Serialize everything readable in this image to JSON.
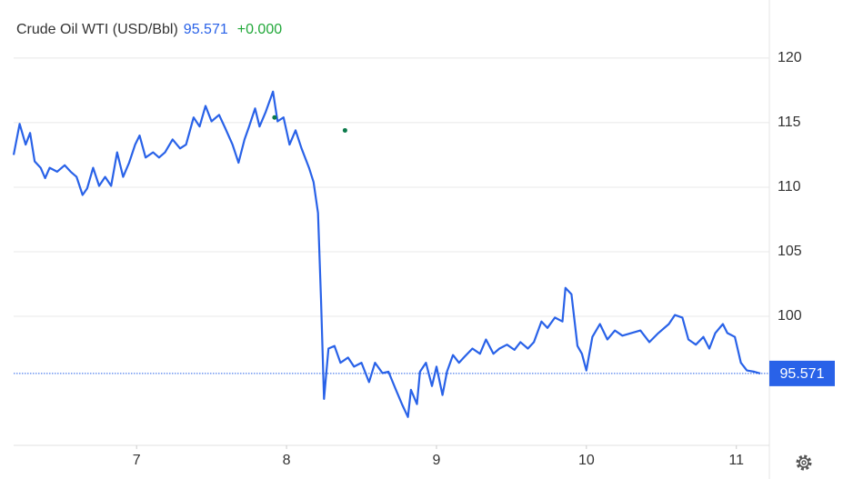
{
  "chart_data": {
    "type": "line",
    "title": "Crude Oil WTI (USD/Bbl)",
    "price": 95.571,
    "change": "+0.000",
    "x": [
      6.18,
      6.22,
      6.26,
      6.29,
      6.32,
      6.36,
      6.39,
      6.42,
      6.47,
      6.52,
      6.56,
      6.6,
      6.64,
      6.67,
      6.71,
      6.75,
      6.79,
      6.83,
      6.87,
      6.91,
      6.95,
      6.99,
      7.02,
      7.06,
      7.11,
      7.15,
      7.19,
      7.24,
      7.29,
      7.33,
      7.38,
      7.42,
      7.46,
      7.5,
      7.55,
      7.59,
      7.64,
      7.68,
      7.72,
      7.75,
      7.79,
      7.82,
      7.86,
      7.91,
      7.94,
      7.98,
      8.02,
      8.06,
      8.1,
      8.15,
      8.18,
      8.21,
      8.23,
      8.25,
      8.28,
      8.32,
      8.36,
      8.41,
      8.45,
      8.5,
      8.55,
      8.59,
      8.64,
      8.68,
      8.73,
      8.77,
      8.81,
      8.83,
      8.87,
      8.89,
      8.93,
      8.97,
      9.0,
      9.04,
      9.07,
      9.11,
      9.15,
      9.19,
      9.24,
      9.29,
      9.33,
      9.38,
      9.42,
      9.47,
      9.52,
      9.56,
      9.61,
      9.65,
      9.7,
      9.74,
      9.79,
      9.84,
      9.86,
      9.9,
      9.94,
      9.97,
      10.0,
      10.04,
      10.09,
      10.14,
      10.19,
      10.24,
      10.3,
      10.36,
      10.42,
      10.48,
      10.55,
      10.59,
      10.64,
      10.68,
      10.73,
      10.78,
      10.82,
      10.86,
      10.91,
      10.94,
      10.99,
      11.03,
      11.07,
      11.12,
      11.16
    ],
    "series": [
      {
        "color": "#2962e8",
        "values": [
          112.5,
          114.9,
          113.3,
          114.2,
          112.0,
          111.5,
          110.7,
          111.5,
          111.2,
          111.7,
          111.2,
          110.8,
          109.4,
          109.9,
          111.5,
          110.1,
          110.8,
          110.1,
          112.7,
          110.8,
          111.9,
          113.3,
          114.0,
          112.3,
          112.7,
          112.3,
          112.7,
          113.7,
          113.0,
          113.3,
          115.4,
          114.7,
          116.3,
          115.1,
          115.6,
          114.6,
          113.3,
          111.9,
          113.7,
          114.7,
          116.1,
          114.7,
          115.8,
          117.4,
          115.1,
          115.4,
          113.3,
          114.4,
          113.0,
          111.5,
          110.4,
          108.0,
          101.3,
          93.6,
          97.5,
          97.7,
          96.4,
          96.8,
          96.1,
          96.4,
          94.9,
          96.4,
          95.6,
          95.7,
          94.3,
          93.2,
          92.2,
          94.3,
          93.2,
          95.7,
          96.4,
          94.6,
          96.1,
          93.9,
          95.7,
          97.0,
          96.4,
          96.9,
          97.5,
          97.1,
          98.2,
          97.1,
          97.5,
          97.8,
          97.4,
          98.0,
          97.5,
          98.0,
          99.6,
          99.1,
          99.9,
          99.6,
          102.2,
          101.7,
          97.7,
          97.1,
          95.8,
          98.4,
          99.4,
          98.2,
          98.9,
          98.5,
          98.7,
          98.9,
          98.0,
          98.7,
          99.4,
          100.1,
          99.9,
          98.2,
          97.8,
          98.4,
          97.5,
          98.7,
          99.4,
          98.7,
          98.4,
          96.4,
          95.8,
          95.7,
          95.57
        ]
      }
    ],
    "markers": {
      "color": "#0b7a4b",
      "x": [
        7.92,
        8.39
      ],
      "values": [
        115.4,
        114.4
      ]
    },
    "xlim": [
      6.18,
      11.22
    ],
    "xticks": [
      7,
      8,
      9,
      10,
      11
    ],
    "ylim": [
      90,
      124.5
    ],
    "yticks": [
      100,
      105,
      110,
      115,
      120
    ],
    "grid": true
  }
}
